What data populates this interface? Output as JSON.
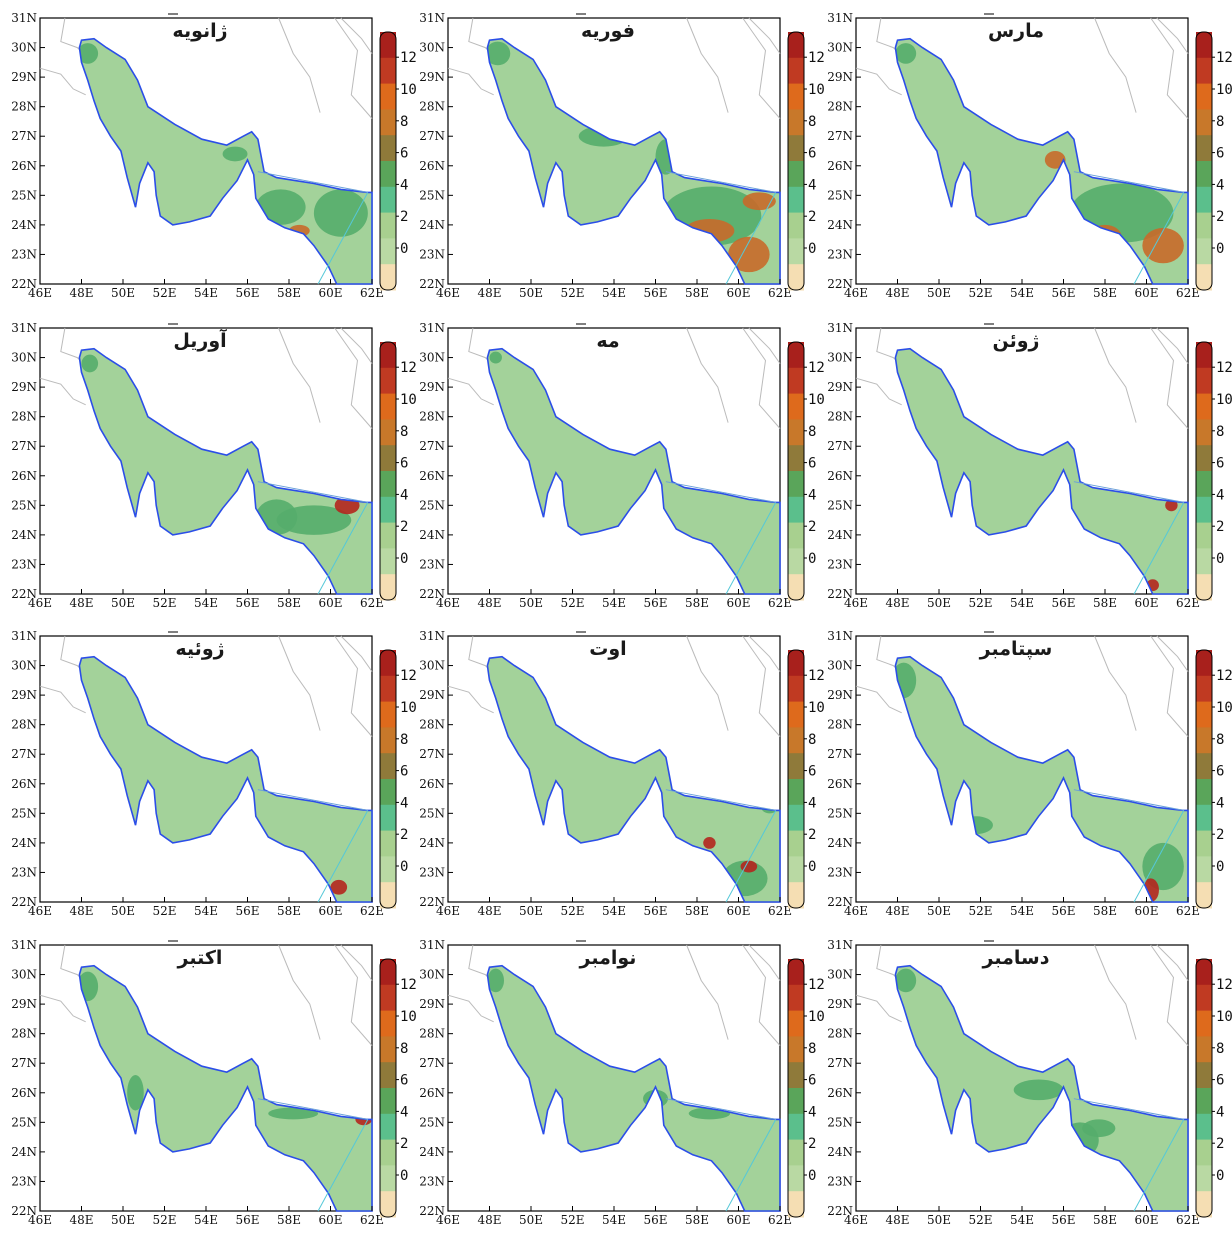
{
  "figure": {
    "x_ticks": [
      "46E",
      "48E",
      "50E",
      "52E",
      "54E",
      "56E",
      "58E",
      "60E",
      "62E"
    ],
    "y_ticks": [
      "22N",
      "23N",
      "24N",
      "25N",
      "26N",
      "27N",
      "28N",
      "29N",
      "30N",
      "31N"
    ],
    "colorbar_labels": [
      "0",
      "2",
      "4",
      "6",
      "8",
      "10",
      "12"
    ],
    "colorbar_colors": [
      "#f5deb3",
      "#b9d9a3",
      "#a8d08f",
      "#5bbf8c",
      "#5aa55a",
      "#8f7a3a",
      "#c8782a",
      "#de6a1c",
      "#c03a22",
      "#a8201c"
    ]
  },
  "colors": {
    "gulf_base": "#a3d29a",
    "coast": "#2b4ee8",
    "moderate": "#55ad6b",
    "orange": "#c86a2a",
    "high": "#b4261e",
    "border": "#bbbbbb"
  },
  "chart_data": [
    {
      "type": "heatmap",
      "month": "ژانویه",
      "x_range": [
        "46E",
        "62E"
      ],
      "y_range": [
        "22N",
        "31N"
      ],
      "colorbar": [
        0,
        12
      ]
    },
    {
      "type": "heatmap",
      "month": "فوریه",
      "x_range": [
        "46E",
        "62E"
      ],
      "y_range": [
        "22N",
        "31N"
      ],
      "colorbar": [
        0,
        12
      ]
    },
    {
      "type": "heatmap",
      "month": "مارس",
      "x_range": [
        "46E",
        "62E"
      ],
      "y_range": [
        "22N",
        "31N"
      ],
      "colorbar": [
        0,
        12
      ]
    },
    {
      "type": "heatmap",
      "month": "آوریل",
      "x_range": [
        "46E",
        "62E"
      ],
      "y_range": [
        "22N",
        "31N"
      ],
      "colorbar": [
        0,
        12
      ]
    },
    {
      "type": "heatmap",
      "month": "مه",
      "x_range": [
        "46E",
        "62E"
      ],
      "y_range": [
        "22N",
        "31N"
      ],
      "colorbar": [
        0,
        12
      ]
    },
    {
      "type": "heatmap",
      "month": "ژوئن",
      "x_range": [
        "46E",
        "62E"
      ],
      "y_range": [
        "22N",
        "31N"
      ],
      "colorbar": [
        0,
        12
      ]
    },
    {
      "type": "heatmap",
      "month": "ژوئیه",
      "x_range": [
        "46E",
        "62E"
      ],
      "y_range": [
        "22N",
        "31N"
      ],
      "colorbar": [
        0,
        12
      ]
    },
    {
      "type": "heatmap",
      "month": "اوت",
      "x_range": [
        "46E",
        "62E"
      ],
      "y_range": [
        "22N",
        "31N"
      ],
      "colorbar": [
        0,
        12
      ]
    },
    {
      "type": "heatmap",
      "month": "سپتامبر",
      "x_range": [
        "46E",
        "62E"
      ],
      "y_range": [
        "22N",
        "31N"
      ],
      "colorbar": [
        0,
        12
      ]
    },
    {
      "type": "heatmap",
      "month": "اکتبر",
      "x_range": [
        "46E",
        "62E"
      ],
      "y_range": [
        "22N",
        "31N"
      ],
      "colorbar": [
        0,
        12
      ]
    },
    {
      "type": "heatmap",
      "month": "نوامبر",
      "x_range": [
        "46E",
        "62E"
      ],
      "y_range": [
        "22N",
        "31N"
      ],
      "colorbar": [
        0,
        12
      ]
    },
    {
      "type": "heatmap",
      "month": "دسامبر",
      "x_range": [
        "46E",
        "62E"
      ],
      "y_range": [
        "22N",
        "31N"
      ],
      "colorbar": [
        0,
        12
      ]
    }
  ]
}
